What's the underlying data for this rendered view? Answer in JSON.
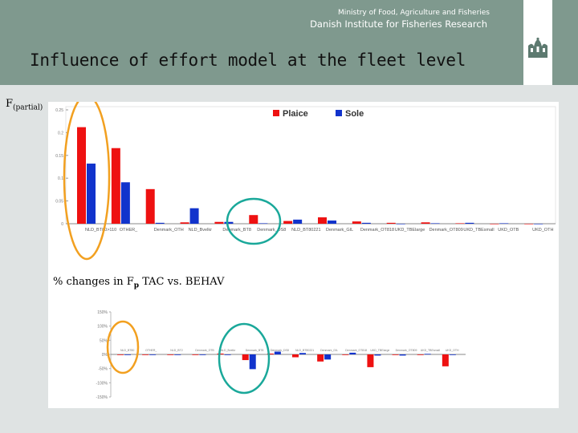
{
  "header": {
    "ministry": "Ministry of Food, Agriculture and Fisheries",
    "institute": "Danish Institute for Fisheries Research",
    "logo": "danish-crown-logo"
  },
  "title": "Influence of effort model at the fleet level",
  "f_label": {
    "main": "F",
    "sub": "(partial)"
  },
  "pct_label": {
    "pre": "% changes in F",
    "sub": "p",
    "post": " TAC vs. BEHAV"
  },
  "colors": {
    "plaice": "#ee1111",
    "sole": "#1133cc",
    "orange_ring": "#f2a020",
    "teal_ring": "#1aa89a",
    "header": "#7f998e"
  },
  "chart_data": [
    {
      "type": "bar",
      "title": "F(partial)",
      "categories": [
        "NLD_BT80>110",
        "OTHER_",
        "Denmark_OTH",
        "NLD_Bvelkr",
        "Denmark_BT8",
        "Denmark_DS8",
        "NLD_BT80221",
        "Denmark_GIL",
        "Denmark_OT818",
        "UKD_TBElarge",
        "Denmark_OT809",
        "UKD_TBEsmall",
        "UKD_OTB",
        "UKD_OTH"
      ],
      "series": [
        {
          "name": "Plaice",
          "values": [
            0.212,
            0.166,
            0.076,
            0.003,
            0.004,
            0.019,
            0.006,
            0.014,
            0.005,
            0.002,
            0.003,
            0.001,
            0.0,
            0.0
          ]
        },
        {
          "name": "Sole",
          "values": [
            0.132,
            0.091,
            0.002,
            0.034,
            0.004,
            0.001,
            0.009,
            0.007,
            0.002,
            0.0,
            0.001,
            0.002,
            0.001,
            0.0
          ]
        }
      ],
      "yticks": [
        "0.25",
        "0.2",
        "0.15",
        "0.1",
        "0.05",
        "0"
      ],
      "ylim": [
        0,
        0.25
      ],
      "legend": "top-right"
    },
    {
      "type": "bar",
      "title": "% changes in Fp TAC vs. BEHAV",
      "categories": [
        "NLD_BT80",
        "OTHER_",
        "NLD_BT2",
        "Denmark_OTB",
        "NLD_Bvelkr",
        "Denmark_BT8",
        "Denmark_DS8",
        "NLD_BT80221",
        "Denmark_GIL",
        "Denmark_OT818",
        "UKD_TBElarge",
        "Denmark_OT809",
        "UKD_TBEsmall",
        "UKD_OTH"
      ],
      "series": [
        {
          "name": "Plaice",
          "values": [
            -2,
            0,
            0,
            0,
            3,
            -20,
            3,
            -10,
            -25,
            0,
            -45,
            0,
            -2,
            -42
          ]
        },
        {
          "name": "Sole",
          "values": [
            -1,
            0,
            0,
            0,
            -1,
            -52,
            10,
            5,
            -18,
            6,
            -4,
            -4,
            2,
            0
          ]
        }
      ],
      "yticks": [
        "150%",
        "100%",
        "50%",
        "0%",
        "-50%",
        "-100%",
        "-150%"
      ],
      "ylim": [
        -150,
        150
      ]
    }
  ]
}
